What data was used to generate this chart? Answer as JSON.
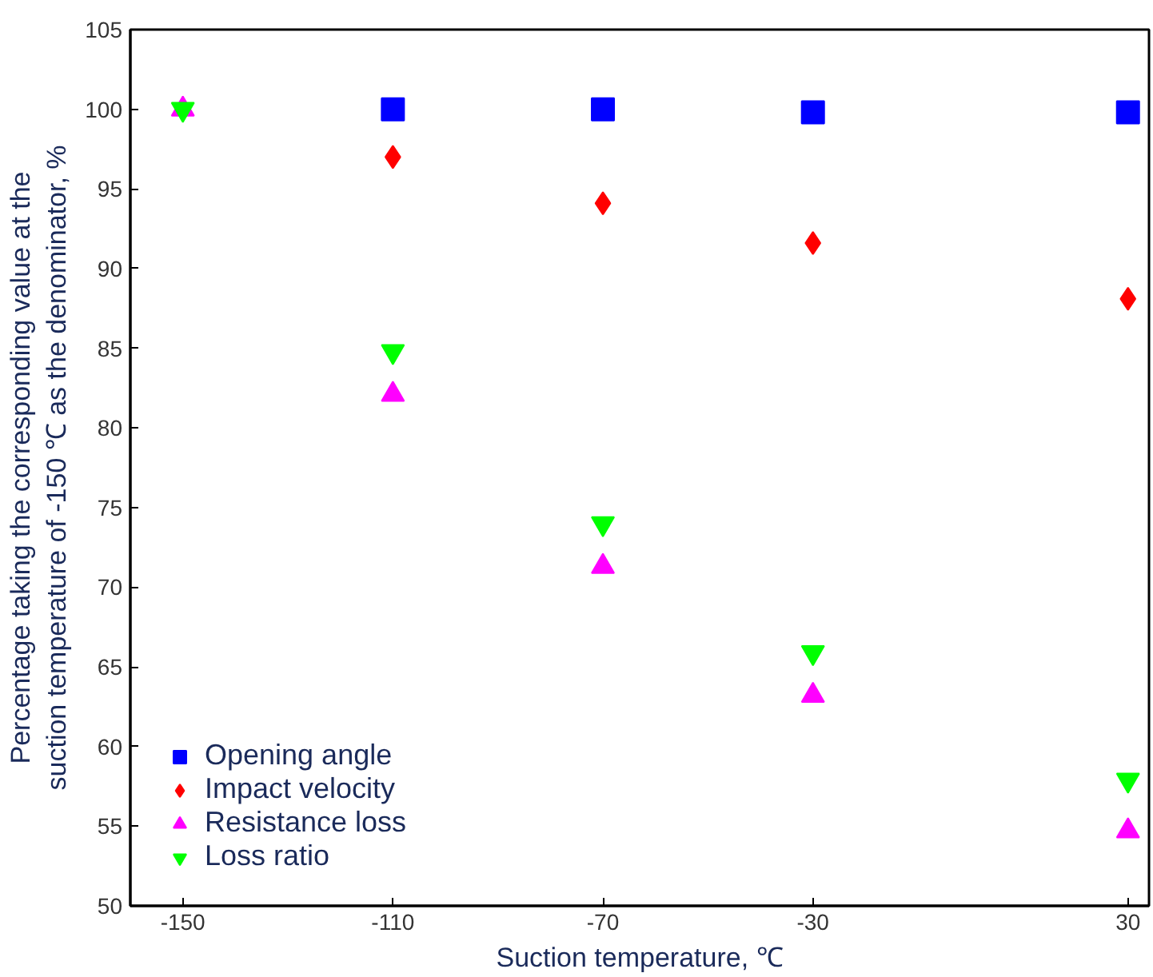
{
  "chart_data": {
    "type": "scatter",
    "xlabel": "Suction temperature, ℃",
    "ylabel": "Percentage taking the corresponding value at the\nsuction temperature of -150 ℃ as the denominator, %",
    "x": [
      -150,
      -110,
      -70,
      -30,
      30
    ],
    "xlim": [
      -160,
      34
    ],
    "xticks": [
      -150,
      -110,
      -70,
      -30,
      30
    ],
    "ylim": [
      50,
      105
    ],
    "yticks": [
      50,
      55,
      60,
      65,
      70,
      75,
      80,
      85,
      90,
      95,
      100,
      105
    ],
    "grid": false,
    "legend": "bottom left",
    "series": [
      {
        "name": "Opening angle",
        "color": "#0000ff",
        "marker": "square",
        "values": [
          null,
          100,
          100,
          99.8,
          99.8
        ]
      },
      {
        "name": "Impact velocity",
        "color": "#ff0000",
        "marker": "diamond",
        "values": [
          null,
          97.0,
          94.1,
          91.6,
          88.1
        ]
      },
      {
        "name": "Resistance loss",
        "color": "#ff00ff",
        "marker": "triangle",
        "values": [
          100,
          82.1,
          71.3,
          63.2,
          54.7
        ]
      },
      {
        "name": "Loss ratio",
        "color": "#00ff00",
        "values": [
          100,
          84.8,
          74.0,
          65.9,
          57.9
        ]
      }
    ]
  }
}
